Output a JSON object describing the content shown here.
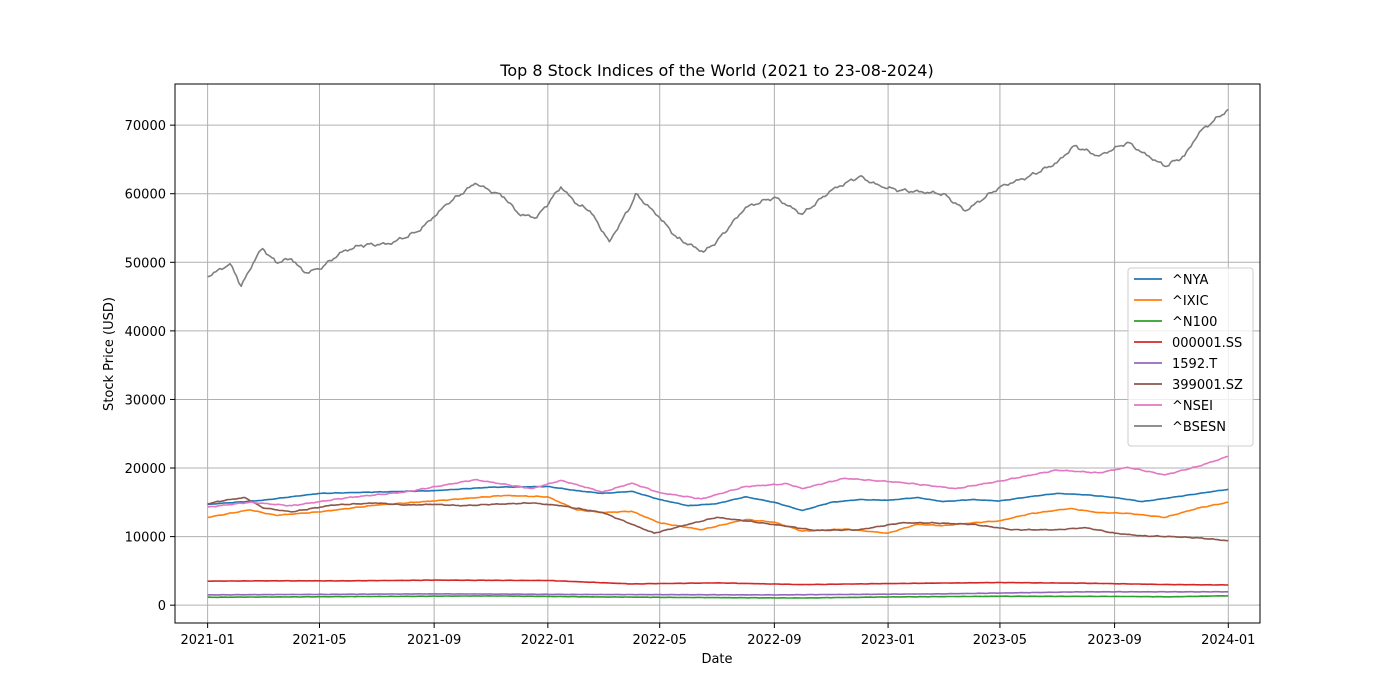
{
  "chart_data": {
    "type": "line",
    "title": "Top 8 Stock Indices of the World (2021 to 23-08-2024)",
    "xlabel": "Date",
    "ylabel": "Stock Price (USD)",
    "xlim": [
      "2020-11-27",
      "2024-02-04"
    ],
    "ylim": [
      -2600,
      76000
    ],
    "x_ticks": [
      "2021-01",
      "2021-05",
      "2021-09",
      "2022-01",
      "2022-05",
      "2022-09",
      "2023-01",
      "2023-05",
      "2023-09",
      "2024-01"
    ],
    "y_ticks": [
      0,
      10000,
      20000,
      30000,
      40000,
      50000,
      60000,
      70000
    ],
    "grid": true,
    "legend_position": "center-right",
    "series": [
      {
        "name": "^NYA",
        "color": "#1f77b4",
        "points": [
          [
            "2021-01-01",
            14700
          ],
          [
            "2021-03-01",
            15300
          ],
          [
            "2021-05-01",
            16300
          ],
          [
            "2021-07-01",
            16500
          ],
          [
            "2021-09-01",
            16700
          ],
          [
            "2021-11-01",
            17200
          ],
          [
            "2022-01-01",
            17300
          ],
          [
            "2022-02-01",
            16700
          ],
          [
            "2022-03-01",
            16300
          ],
          [
            "2022-04-01",
            16600
          ],
          [
            "2022-05-01",
            15400
          ],
          [
            "2022-06-01",
            14500
          ],
          [
            "2022-07-01",
            14800
          ],
          [
            "2022-08-01",
            15800
          ],
          [
            "2022-09-01",
            15000
          ],
          [
            "2022-10-01",
            13800
          ],
          [
            "2022-11-01",
            15000
          ],
          [
            "2022-12-01",
            15400
          ],
          [
            "2023-01-01",
            15300
          ],
          [
            "2023-02-01",
            15700
          ],
          [
            "2023-03-01",
            15100
          ],
          [
            "2023-04-01",
            15400
          ],
          [
            "2023-05-01",
            15200
          ],
          [
            "2023-06-01",
            15800
          ],
          [
            "2023-07-01",
            16300
          ],
          [
            "2023-08-01",
            16100
          ],
          [
            "2023-09-01",
            15700
          ],
          [
            "2023-10-01",
            15100
          ],
          [
            "2023-11-01",
            15700
          ],
          [
            "2024-01-01",
            16900
          ]
        ]
      },
      {
        "name": "^IXIC",
        "color": "#ff7f0e",
        "points": [
          [
            "2021-01-01",
            12800
          ],
          [
            "2021-02-15",
            13900
          ],
          [
            "2021-03-15",
            13100
          ],
          [
            "2021-05-01",
            13600
          ],
          [
            "2021-07-01",
            14600
          ],
          [
            "2021-09-01",
            15200
          ],
          [
            "2021-11-15",
            16000
          ],
          [
            "2022-01-01",
            15800
          ],
          [
            "2022-02-01",
            13900
          ],
          [
            "2022-03-01",
            13500
          ],
          [
            "2022-04-01",
            13700
          ],
          [
            "2022-05-01",
            12000
          ],
          [
            "2022-06-15",
            11000
          ],
          [
            "2022-08-01",
            12500
          ],
          [
            "2022-09-01",
            12100
          ],
          [
            "2022-10-01",
            10800
          ],
          [
            "2022-11-15",
            11100
          ],
          [
            "2023-01-01",
            10500
          ],
          [
            "2023-02-01",
            11800
          ],
          [
            "2023-03-01",
            11600
          ],
          [
            "2023-04-01",
            12000
          ],
          [
            "2023-05-01",
            12300
          ],
          [
            "2023-06-01",
            13300
          ],
          [
            "2023-07-15",
            14100
          ],
          [
            "2023-08-15",
            13500
          ],
          [
            "2023-09-15",
            13400
          ],
          [
            "2023-10-25",
            12800
          ],
          [
            "2023-12-01",
            14200
          ],
          [
            "2024-01-01",
            15000
          ]
        ]
      },
      {
        "name": "^N100",
        "color": "#2ca02c",
        "points": [
          [
            "2021-01-01",
            1150
          ],
          [
            "2021-06-01",
            1250
          ],
          [
            "2021-11-01",
            1350
          ],
          [
            "2022-03-01",
            1200
          ],
          [
            "2022-07-01",
            1100
          ],
          [
            "2022-10-01",
            1050
          ],
          [
            "2023-01-01",
            1200
          ],
          [
            "2023-05-01",
            1300
          ],
          [
            "2023-09-01",
            1280
          ],
          [
            "2023-11-01",
            1220
          ],
          [
            "2024-01-01",
            1380
          ]
        ]
      },
      {
        "name": "000001.SS",
        "color": "#d62728",
        "points": [
          [
            "2021-01-01",
            3500
          ],
          [
            "2021-03-01",
            3550
          ],
          [
            "2021-06-01",
            3550
          ],
          [
            "2021-09-01",
            3650
          ],
          [
            "2022-01-01",
            3600
          ],
          [
            "2022-04-01",
            3100
          ],
          [
            "2022-07-01",
            3250
          ],
          [
            "2022-10-01",
            3000
          ],
          [
            "2023-01-01",
            3150
          ],
          [
            "2023-05-01",
            3300
          ],
          [
            "2023-08-01",
            3200
          ],
          [
            "2023-11-01",
            3000
          ],
          [
            "2024-01-01",
            2950
          ]
        ]
      },
      {
        "name": "1592.T",
        "color": "#9467bd",
        "points": [
          [
            "2021-01-01",
            1500
          ],
          [
            "2021-09-01",
            1650
          ],
          [
            "2022-03-01",
            1550
          ],
          [
            "2022-09-01",
            1500
          ],
          [
            "2023-03-01",
            1650
          ],
          [
            "2023-08-01",
            1950
          ],
          [
            "2024-01-01",
            1950
          ]
        ]
      },
      {
        "name": "399001.SZ",
        "color": "#8c564b",
        "points": [
          [
            "2021-01-01",
            14800
          ],
          [
            "2021-01-20",
            15300
          ],
          [
            "2021-02-10",
            15700
          ],
          [
            "2021-03-01",
            14200
          ],
          [
            "2021-04-01",
            13600
          ],
          [
            "2021-05-15",
            14600
          ],
          [
            "2021-07-01",
            14900
          ],
          [
            "2021-08-01",
            14600
          ],
          [
            "2021-09-01",
            14700
          ],
          [
            "2021-10-01",
            14500
          ],
          [
            "2021-11-01",
            14700
          ],
          [
            "2021-12-15",
            14900
          ],
          [
            "2022-01-15",
            14500
          ],
          [
            "2022-03-01",
            13500
          ],
          [
            "2022-04-01",
            11800
          ],
          [
            "2022-04-25",
            10500
          ],
          [
            "2022-06-01",
            11800
          ],
          [
            "2022-07-01",
            12800
          ],
          [
            "2022-08-01",
            12300
          ],
          [
            "2022-09-15",
            11500
          ],
          [
            "2022-10-15",
            10900
          ],
          [
            "2022-12-01",
            11000
          ],
          [
            "2023-01-15",
            12000
          ],
          [
            "2023-02-15",
            12000
          ],
          [
            "2023-04-01",
            11800
          ],
          [
            "2023-05-15",
            11000
          ],
          [
            "2023-07-01",
            11000
          ],
          [
            "2023-08-01",
            11300
          ],
          [
            "2023-09-01",
            10500
          ],
          [
            "2023-10-01",
            10100
          ],
          [
            "2023-11-01",
            10000
          ],
          [
            "2023-12-01",
            9800
          ],
          [
            "2024-01-01",
            9400
          ]
        ]
      },
      {
        "name": "^NSEI",
        "color": "#e377c2",
        "points": [
          [
            "2021-01-01",
            14300
          ],
          [
            "2021-02-15",
            15000
          ],
          [
            "2021-04-01",
            14500
          ],
          [
            "2021-06-01",
            15700
          ],
          [
            "2021-08-01",
            16500
          ],
          [
            "2021-10-15",
            18300
          ],
          [
            "2021-12-15",
            17000
          ],
          [
            "2022-01-15",
            18200
          ],
          [
            "2022-03-01",
            16500
          ],
          [
            "2022-04-01",
            17800
          ],
          [
            "2022-05-01",
            16400
          ],
          [
            "2022-06-15",
            15500
          ],
          [
            "2022-08-01",
            17300
          ],
          [
            "2022-09-15",
            17700
          ],
          [
            "2022-10-01",
            17000
          ],
          [
            "2022-11-15",
            18500
          ],
          [
            "2022-12-15",
            18200
          ],
          [
            "2023-01-15",
            17900
          ],
          [
            "2023-03-15",
            17000
          ],
          [
            "2023-05-01",
            18100
          ],
          [
            "2023-07-01",
            19700
          ],
          [
            "2023-08-15",
            19300
          ],
          [
            "2023-09-15",
            20100
          ],
          [
            "2023-10-25",
            19000
          ],
          [
            "2023-12-01",
            20300
          ],
          [
            "2024-01-01",
            21700
          ]
        ]
      },
      {
        "name": "^BSESN",
        "color": "#7f7f7f",
        "points": [
          [
            "2021-01-01",
            47900
          ],
          [
            "2021-01-25",
            49800
          ],
          [
            "2021-02-01",
            48000
          ],
          [
            "2021-02-06",
            46500
          ],
          [
            "2021-02-25",
            51500
          ],
          [
            "2021-03-01",
            52000
          ],
          [
            "2021-03-15",
            50000
          ],
          [
            "2021-04-01",
            50500
          ],
          [
            "2021-04-15",
            48500
          ],
          [
            "2021-05-01",
            49000
          ],
          [
            "2021-05-25",
            51500
          ],
          [
            "2021-06-15",
            52500
          ],
          [
            "2021-07-15",
            52700
          ],
          [
            "2021-08-15",
            54500
          ],
          [
            "2021-09-15",
            58500
          ],
          [
            "2021-10-15",
            61500
          ],
          [
            "2021-11-15",
            59500
          ],
          [
            "2021-12-01",
            57000
          ],
          [
            "2021-12-20",
            56500
          ],
          [
            "2022-01-15",
            61000
          ],
          [
            "2022-02-01",
            58500
          ],
          [
            "2022-02-15",
            57500
          ],
          [
            "2022-03-08",
            53000
          ],
          [
            "2022-04-01",
            58500
          ],
          [
            "2022-04-05",
            60000
          ],
          [
            "2022-05-01",
            56500
          ],
          [
            "2022-05-20",
            53500
          ],
          [
            "2022-06-17",
            51500
          ],
          [
            "2022-07-01",
            53000
          ],
          [
            "2022-08-01",
            58000
          ],
          [
            "2022-09-01",
            59500
          ],
          [
            "2022-10-01",
            57000
          ],
          [
            "2022-11-01",
            60500
          ],
          [
            "2022-12-01",
            62500
          ],
          [
            "2022-12-25",
            61000
          ],
          [
            "2023-01-15",
            60500
          ],
          [
            "2023-03-01",
            60000
          ],
          [
            "2023-03-25",
            57500
          ],
          [
            "2023-05-01",
            61000
          ],
          [
            "2023-06-01",
            62500
          ],
          [
            "2023-07-01",
            64500
          ],
          [
            "2023-07-20",
            67000
          ],
          [
            "2023-08-15",
            65500
          ],
          [
            "2023-09-15",
            67500
          ],
          [
            "2023-10-01",
            66000
          ],
          [
            "2023-10-25",
            64000
          ],
          [
            "2023-11-15",
            65500
          ],
          [
            "2023-12-01",
            69000
          ],
          [
            "2024-01-01",
            72300
          ]
        ]
      }
    ]
  }
}
